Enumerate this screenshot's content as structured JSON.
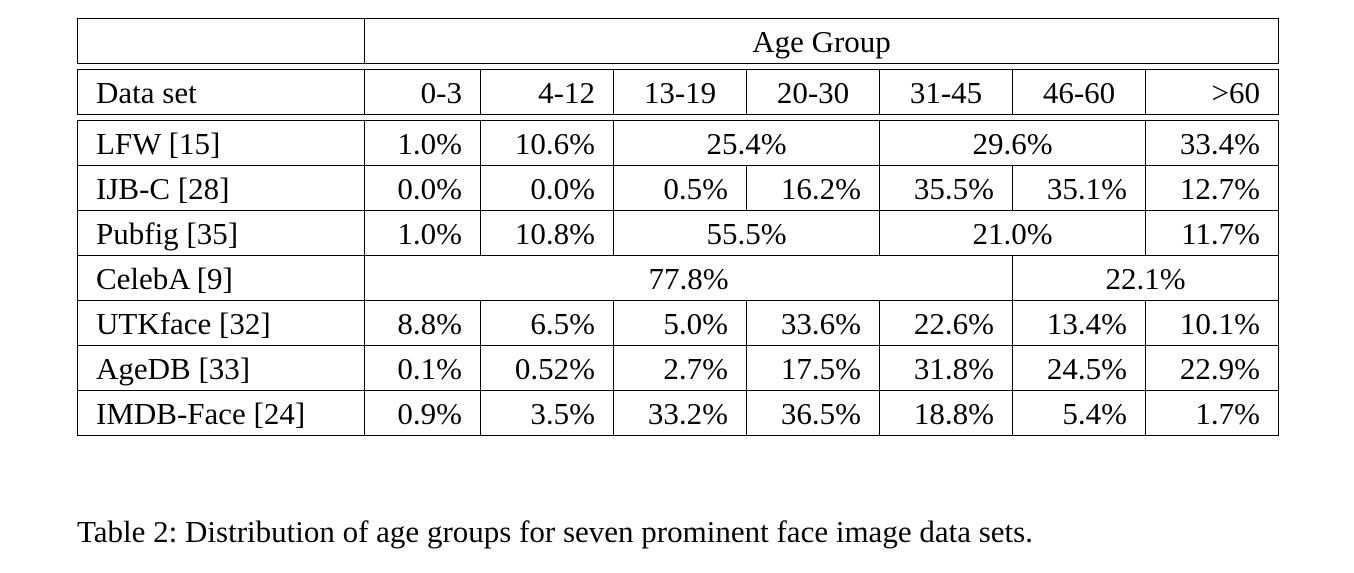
{
  "table": {
    "group_header": "Age Group",
    "dataset_header": "Data set",
    "age_columns": [
      "0-3",
      "4-12",
      "13-19",
      "20-30",
      "31-45",
      "46-60",
      ">60"
    ],
    "rows": [
      {
        "name": "LFW [15]",
        "cells": [
          {
            "value": "1.0%",
            "span": 1
          },
          {
            "value": "10.6%",
            "span": 1
          },
          {
            "value": "25.4%",
            "span": 2
          },
          {
            "value": "29.6%",
            "span": 2
          },
          {
            "value": "33.4%",
            "span": 1
          }
        ]
      },
      {
        "name": "IJB-C [28]",
        "cells": [
          {
            "value": "0.0%",
            "span": 1
          },
          {
            "value": "0.0%",
            "span": 1
          },
          {
            "value": "0.5%",
            "span": 1
          },
          {
            "value": "16.2%",
            "span": 1
          },
          {
            "value": "35.5%",
            "span": 1
          },
          {
            "value": "35.1%",
            "span": 1
          },
          {
            "value": "12.7%",
            "span": 1
          }
        ]
      },
      {
        "name": "Pubfig [35]",
        "cells": [
          {
            "value": "1.0%",
            "span": 1
          },
          {
            "value": "10.8%",
            "span": 1
          },
          {
            "value": "55.5%",
            "span": 2
          },
          {
            "value": "21.0%",
            "span": 2
          },
          {
            "value": "11.7%",
            "span": 1
          }
        ]
      },
      {
        "name": "CelebA [9]",
        "cells": [
          {
            "value": "77.8%",
            "span": 5
          },
          {
            "value": "22.1%",
            "span": 2
          }
        ]
      },
      {
        "name": "UTKface [32]",
        "cells": [
          {
            "value": "8.8%",
            "span": 1
          },
          {
            "value": "6.5%",
            "span": 1
          },
          {
            "value": "5.0%",
            "span": 1
          },
          {
            "value": "33.6%",
            "span": 1
          },
          {
            "value": "22.6%",
            "span": 1
          },
          {
            "value": "13.4%",
            "span": 1
          },
          {
            "value": "10.1%",
            "span": 1
          }
        ]
      },
      {
        "name": "AgeDB [33]",
        "cells": [
          {
            "value": "0.1%",
            "span": 1
          },
          {
            "value": "0.52%",
            "span": 1
          },
          {
            "value": "2.7%",
            "span": 1
          },
          {
            "value": "17.5%",
            "span": 1
          },
          {
            "value": "31.8%",
            "span": 1
          },
          {
            "value": "24.5%",
            "span": 1
          },
          {
            "value": "22.9%",
            "span": 1
          }
        ]
      },
      {
        "name": "IMDB-Face [24]",
        "cells": [
          {
            "value": "0.9%",
            "span": 1
          },
          {
            "value": "3.5%",
            "span": 1
          },
          {
            "value": "33.2%",
            "span": 1
          },
          {
            "value": "36.5%",
            "span": 1
          },
          {
            "value": "18.8%",
            "span": 1
          },
          {
            "value": "5.4%",
            "span": 1
          },
          {
            "value": "1.7%",
            "span": 1
          }
        ]
      }
    ]
  },
  "caption": "Table 2: Distribution of age groups for seven prominent face image data sets."
}
